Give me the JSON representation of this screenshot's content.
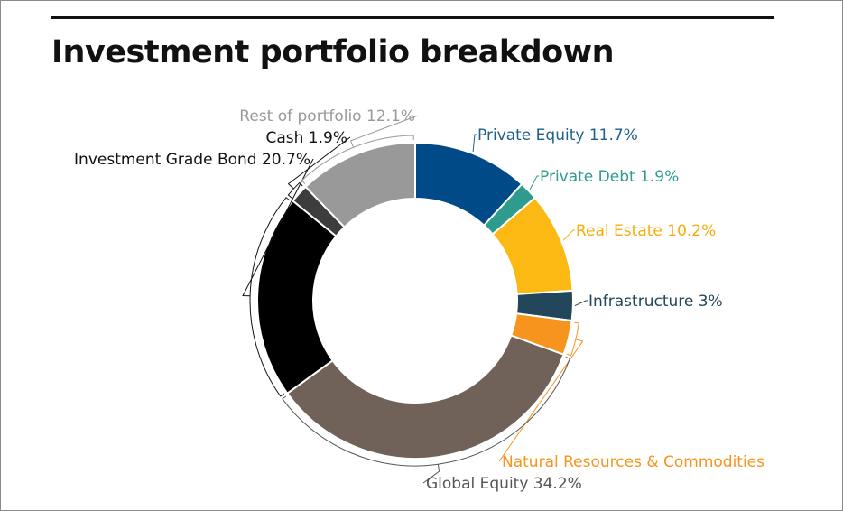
{
  "page": {
    "title": "Investment portfolio breakdown"
  },
  "chart_data": {
    "type": "pie",
    "donut": true,
    "title": "Investment portfolio breakdown",
    "legend": "none",
    "slices": [
      {
        "label": "Private Equity 11.7%",
        "category": "Private Equity",
        "value": 11.7,
        "color": "#004A87"
      },
      {
        "label": "Private Debt 1.9%",
        "category": "Private Debt",
        "value": 1.9,
        "color": "#2E9B8E"
      },
      {
        "label": "Real Estate 10.2%",
        "category": "Real Estate",
        "value": 10.2,
        "color": "#FDB913"
      },
      {
        "label": "Infrastructure 3%",
        "category": "Infrastructure",
        "value": 3.0,
        "color": "#23475A"
      },
      {
        "label": "Natural Resources & Commodities",
        "category": "Natural Resources & Commodities",
        "value": 3.5,
        "color": "#F7941D"
      },
      {
        "label": "Global Equity 34.2%",
        "category": "Global Equity",
        "value": 34.2,
        "color": "#706259"
      },
      {
        "label": "Investment Grade Bond 20.7%",
        "category": "Investment Grade Bond",
        "value": 20.7,
        "color": "#000000"
      },
      {
        "label": "Cash 1.9%",
        "category": "Cash",
        "value": 1.9,
        "color": "#3D3D3D"
      },
      {
        "label": "Rest of portfolio 12.1%",
        "category": "Rest of portfolio",
        "value": 12.1,
        "color": "#999999"
      }
    ],
    "label_colors": {
      "Private Equity": "#1F5F8C",
      "Private Debt": "#2E9B8E",
      "Real Estate": "#F5AE0C",
      "Infrastructure": "#23475A",
      "Natural Resources & Commodities": "#F7941D",
      "Global Equity": "#555555",
      "Investment Grade Bond": "#111111",
      "Cash": "#111111",
      "Rest of portfolio": "#999999"
    }
  }
}
